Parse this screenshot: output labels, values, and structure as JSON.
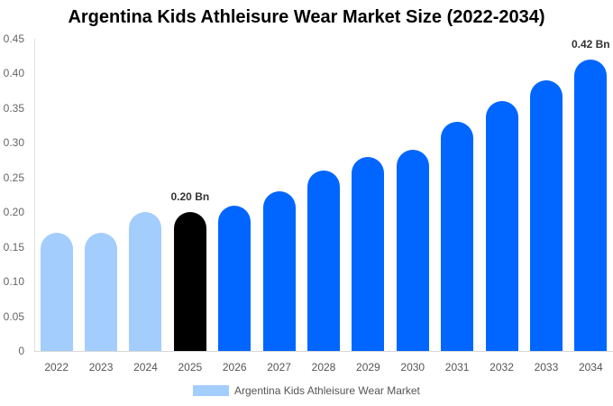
{
  "chart_data": {
    "type": "bar",
    "title": "Argentina Kids Athleisure Wear Market Size (2022-2034)",
    "xlabel": "",
    "ylabel": "",
    "ylim": [
      0,
      0.45
    ],
    "yticks": [
      "0",
      "0.05",
      "0.10",
      "0.15",
      "0.20",
      "0.25",
      "0.30",
      "0.35",
      "0.40",
      "0.45"
    ],
    "categories": [
      "2022",
      "2023",
      "2024",
      "2025",
      "2026",
      "2027",
      "2028",
      "2029",
      "2030",
      "2031",
      "2032",
      "2033",
      "2034"
    ],
    "series": [
      {
        "name": "Argentina Kids Athleisure Wear Market",
        "values": [
          0.17,
          0.17,
          0.2,
          0.2,
          0.21,
          0.23,
          0.26,
          0.28,
          0.29,
          0.33,
          0.36,
          0.39,
          0.42
        ]
      }
    ],
    "bar_colors": [
      "#a3cdfd",
      "#a3cdfd",
      "#a3cdfd",
      "#000000",
      "#0066ff",
      "#0066ff",
      "#0066ff",
      "#0066ff",
      "#0066ff",
      "#0066ff",
      "#0066ff",
      "#0066ff",
      "#0066ff"
    ],
    "annotations": [
      {
        "category": "2025",
        "text": "0.20 Bn"
      },
      {
        "category": "2034",
        "text": "0.42 Bn"
      }
    ],
    "grid": false,
    "legend_position": "bottom"
  },
  "legend": {
    "label": "Argentina Kids Athleisure Wear Market",
    "color": "#a3cdfd"
  }
}
